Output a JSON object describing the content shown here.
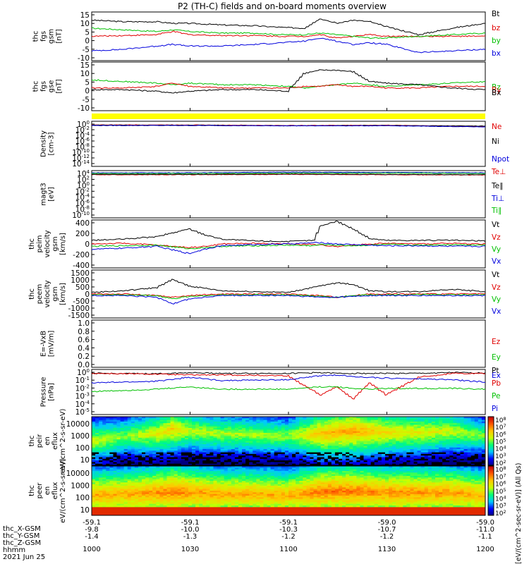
{
  "title": "P2 (TH-C) fields and on-board moments overview",
  "spectrogram_colorbar_label": "[eV/(cm^2-sec-sr-eV)] (All Qs)",
  "ephemeris": {
    "row_labels": [
      "thc_X-GSM",
      "thc_Y-GSM",
      "thc_Z-GSM",
      "hhmm",
      "2021 Jun 25"
    ],
    "ticks": [
      {
        "x": "-59.1",
        "y": "-9.8",
        "z": "-1.4",
        "time": "1000"
      },
      {
        "x": "-59.1",
        "y": "-10.0",
        "z": "-1.3",
        "time": "1030"
      },
      {
        "x": "-59.1",
        "y": "-10.3",
        "z": "-1.2",
        "time": "1100"
      },
      {
        "x": "-59.0",
        "y": "-10.7",
        "z": "-1.2",
        "time": "1130"
      },
      {
        "x": "-59.0",
        "y": "-11.0",
        "z": "-1.1",
        "time": "1200"
      }
    ]
  },
  "chart_data": [
    {
      "type": "line",
      "ylabel": "thc fgs gsm [nT]",
      "yticks": [
        "15",
        "10",
        "5",
        "0",
        "-5",
        "-10"
      ],
      "ylim": [
        -15,
        15
      ],
      "legend": [
        {
          "name": "Bt",
          "color": "#000000"
        },
        {
          "name": "bz",
          "color": "#e00000"
        },
        {
          "name": "by",
          "color": "#00c000"
        },
        {
          "name": "bx",
          "color": "#0000dd"
        }
      ],
      "x": [
        1000,
        1010,
        1020,
        1025,
        1030,
        1040,
        1050,
        1058,
        1105,
        1110,
        1115,
        1120,
        1125,
        1130,
        1140,
        1150,
        1200
      ],
      "series": [
        {
          "name": "Bt",
          "color": "#000000",
          "values": [
            10,
            9,
            9,
            8,
            8,
            7,
            6.5,
            5.5,
            5,
            11,
            8,
            10,
            9,
            6,
            1,
            5,
            8
          ]
        },
        {
          "name": "bz",
          "color": "#e00000",
          "values": [
            0,
            0.5,
            1,
            3,
            1,
            0.5,
            0.5,
            0,
            0,
            1,
            -1,
            0,
            1,
            0,
            0,
            0,
            0
          ]
        },
        {
          "name": "by",
          "color": "#00c000",
          "values": [
            5,
            4,
            3,
            4,
            3,
            2,
            2,
            1,
            1,
            2,
            1,
            0,
            -1,
            -1,
            0,
            1,
            2
          ]
        },
        {
          "name": "bx",
          "color": "#0000dd",
          "values": [
            -9,
            -8,
            -6,
            -5,
            -6,
            -6,
            -5,
            -4,
            -3,
            -1,
            -3,
            -5,
            -4,
            -5,
            -10,
            -9,
            -8
          ]
        }
      ]
    },
    {
      "type": "line",
      "ylabel": "thc fgs gse [nT]",
      "yticks": [
        "15",
        "10",
        "5",
        "0",
        "-5",
        "-10"
      ],
      "ylim": [
        -15,
        15
      ],
      "legend": [
        {
          "name": "Bz",
          "color": "#00c000"
        },
        {
          "name": "By",
          "color": "#e00000"
        },
        {
          "name": "Bx",
          "color": "#000000"
        }
      ],
      "x": [
        1000,
        1010,
        1020,
        1025,
        1030,
        1040,
        1050,
        1100,
        1105,
        1110,
        1115,
        1120,
        1125,
        1130,
        1140,
        1150,
        1200
      ],
      "series": [
        {
          "name": "Bz",
          "color": "#00c000",
          "values": [
            4,
            3,
            2,
            1,
            2,
            1,
            1,
            0,
            -1,
            0,
            1,
            2,
            1,
            0,
            1,
            2,
            3
          ]
        },
        {
          "name": "By",
          "color": "#e00000",
          "values": [
            -1,
            -1,
            0,
            2,
            0,
            -1,
            -1,
            -1,
            0,
            0,
            1,
            0,
            0,
            -1,
            -1,
            0,
            0
          ]
        },
        {
          "name": "Bx",
          "color": "#000000",
          "values": [
            -2,
            -2,
            -3,
            -4,
            -3,
            -2,
            -2,
            -3,
            8,
            10,
            10,
            9,
            3,
            2,
            1,
            -1,
            -2
          ]
        }
      ]
    },
    {
      "type": "line",
      "ylabel": "Density [cm-3]",
      "log": true,
      "yticks": [
        "10^0",
        "10^-2",
        "10^-4",
        "10^-6",
        "10^-8",
        "10^-10",
        "10^-12",
        "10^-14"
      ],
      "ylim_exp": [
        -15,
        1
      ],
      "legend": [
        {
          "name": "Ne",
          "color": "#e00000"
        },
        {
          "name": "Ni",
          "color": "#000000"
        },
        {
          "name": "Npot",
          "color": "#0000dd"
        }
      ],
      "x": [
        1000,
        1030,
        1100,
        1130,
        1200
      ],
      "series": [
        {
          "name": "Ne",
          "color": "#e00000",
          "values": [
            -0.3,
            -0.3,
            -0.5,
            -0.4,
            -0.8
          ]
        },
        {
          "name": "Ni",
          "color": "#000000",
          "values": [
            -0.4,
            -0.4,
            -0.6,
            -0.5,
            -0.7
          ]
        },
        {
          "name": "Npot",
          "color": "#0000dd",
          "values": [
            -0.5,
            -0.5,
            -0.6,
            -0.6,
            -1.0
          ]
        }
      ]
    },
    {
      "type": "line",
      "ylabel": "magt3 [eV]",
      "log": true,
      "yticks": [
        "10^4",
        "10^2",
        "10^0",
        "10^-2",
        "10^-4",
        "10^-6",
        "10^-8",
        "10^-10"
      ],
      "ylim_exp": [
        -11,
        4
      ],
      "legend": [
        {
          "name": "Te⊥",
          "color": "#e00000"
        },
        {
          "name": "Te∥",
          "color": "#000000"
        },
        {
          "name": "Ti⊥",
          "color": "#0000dd"
        },
        {
          "name": "Ti∥",
          "color": "#00c000"
        }
      ],
      "x": [
        1000,
        1030,
        1100,
        1130,
        1200
      ],
      "series": [
        {
          "name": "Te⊥",
          "color": "#e00000",
          "values": [
            2.7,
            2.7,
            2.8,
            2.7,
            2.6
          ]
        },
        {
          "name": "Te∥",
          "color": "#000000",
          "values": [
            2.8,
            2.8,
            2.9,
            2.8,
            2.7
          ]
        },
        {
          "name": "Ti⊥",
          "color": "#0000dd",
          "values": [
            3.3,
            3.3,
            3.5,
            3.4,
            3.3
          ]
        },
        {
          "name": "Ti∥",
          "color": "#00c000",
          "values": [
            3.1,
            3.1,
            3.2,
            3.2,
            3.1
          ]
        }
      ]
    },
    {
      "type": "line",
      "ylabel": "thc peim velocity gsm [km/s]",
      "yticks": [
        "400",
        "200",
        "0",
        "-200",
        "-400"
      ],
      "ylim": [
        -400,
        400
      ],
      "legend": [
        {
          "name": "Vt",
          "color": "#000000"
        },
        {
          "name": "Vz",
          "color": "#e00000"
        },
        {
          "name": "Vy",
          "color": "#00c000"
        },
        {
          "name": "Vx",
          "color": "#0000dd"
        }
      ],
      "x": [
        1000,
        1010,
        1020,
        1030,
        1035,
        1040,
        1050,
        1100,
        1108,
        1110,
        1115,
        1120,
        1125,
        1130,
        1140,
        1150,
        1200
      ],
      "series": [
        {
          "name": "Vt",
          "color": "#000000",
          "values": [
            60,
            80,
            120,
            250,
            150,
            80,
            50,
            40,
            60,
            300,
            380,
            250,
            90,
            60,
            60,
            60,
            50
          ]
        },
        {
          "name": "Vz",
          "color": "#e00000",
          "values": [
            0,
            10,
            -20,
            -60,
            -40,
            0,
            10,
            0,
            -10,
            -20,
            -40,
            -20,
            0,
            10,
            0,
            10,
            0
          ]
        },
        {
          "name": "Vy",
          "color": "#00c000",
          "values": [
            -40,
            -30,
            -20,
            -80,
            -60,
            -40,
            -30,
            -20,
            -30,
            -10,
            -20,
            -30,
            -20,
            -10,
            -20,
            -10,
            -20
          ]
        },
        {
          "name": "Vx",
          "color": "#0000dd",
          "values": [
            -90,
            -70,
            -40,
            -160,
            -80,
            -30,
            -10,
            0,
            20,
            20,
            0,
            -10,
            -20,
            -30,
            -30,
            -40,
            -40
          ]
        }
      ]
    },
    {
      "type": "line",
      "ylabel": "thc peem velocity gsm [km/s]",
      "yticks": [
        "1500",
        "1000",
        "500",
        "0",
        "-500",
        "-1000",
        "-1500"
      ],
      "ylim": [
        -1500,
        1500
      ],
      "legend": [
        {
          "name": "Vt",
          "color": "#000000"
        },
        {
          "name": "Vz",
          "color": "#e00000"
        },
        {
          "name": "Vy",
          "color": "#00c000"
        },
        {
          "name": "Vx",
          "color": "#0000dd"
        }
      ],
      "x": [
        1000,
        1010,
        1020,
        1025,
        1030,
        1040,
        1050,
        1100,
        1110,
        1115,
        1120,
        1125,
        1130,
        1140,
        1150,
        1200
      ],
      "series": [
        {
          "name": "Vt",
          "color": "#000000",
          "values": [
            100,
            200,
            400,
            900,
            500,
            200,
            150,
            100,
            500,
            700,
            600,
            200,
            150,
            150,
            300,
            150
          ]
        },
        {
          "name": "Vz",
          "color": "#e00000",
          "values": [
            0,
            0,
            -100,
            -200,
            -100,
            0,
            0,
            0,
            -100,
            -200,
            -100,
            0,
            0,
            0,
            0,
            0
          ]
        },
        {
          "name": "Vy",
          "color": "#00c000",
          "values": [
            -50,
            -50,
            -100,
            -300,
            -150,
            -50,
            -50,
            -50,
            -150,
            -200,
            -100,
            -50,
            -50,
            -50,
            -50,
            -50
          ]
        },
        {
          "name": "Vx",
          "color": "#0000dd",
          "values": [
            -100,
            -100,
            -200,
            -600,
            -300,
            -100,
            -100,
            -100,
            -200,
            -200,
            -150,
            -100,
            -100,
            -100,
            -100,
            -100
          ]
        }
      ]
    },
    {
      "type": "line",
      "ylabel": "E=-VxB [mV/m]",
      "yticks": [
        "1.0",
        "0.8",
        "0.6",
        "0.4",
        "0.2",
        "0.0"
      ],
      "ylim": [
        0,
        1
      ],
      "legend": [
        {
          "name": "Ez",
          "color": "#e00000"
        },
        {
          "name": "Ey",
          "color": "#00c000"
        },
        {
          "name": "Ex",
          "color": "#0000dd"
        }
      ],
      "x": [],
      "series": []
    },
    {
      "type": "line",
      "ylabel": "Pressure [nPa]",
      "log": true,
      "yticks": [
        "10^0",
        "10^-1",
        "10^-2",
        "10^-3",
        "10^-4",
        "10^-5"
      ],
      "ylim_exp": [
        -5.5,
        0.2
      ],
      "legend": [
        {
          "name": "Pt",
          "color": "#000000"
        },
        {
          "name": "Pb",
          "color": "#e00000"
        },
        {
          "name": "Pe",
          "color": "#00c000"
        },
        {
          "name": "Pi",
          "color": "#0000dd"
        }
      ],
      "x": [
        1000,
        1020,
        1030,
        1040,
        1100,
        1110,
        1115,
        1120,
        1125,
        1130,
        1140,
        1150,
        1200
      ],
      "series": [
        {
          "name": "Pt",
          "color": "#000000",
          "values": [
            -0.3,
            -0.35,
            -0.2,
            -0.3,
            -0.3,
            -0.2,
            -0.3,
            -0.3,
            -0.3,
            -0.3,
            -0.3,
            -0.2,
            -0.25
          ]
        },
        {
          "name": "Pb",
          "color": "#e00000",
          "values": [
            -0.3,
            -0.4,
            -0.5,
            -0.5,
            -0.6,
            -3,
            -2,
            -3.5,
            -1.5,
            -3,
            -0.8,
            -0.3,
            -0.3
          ]
        },
        {
          "name": "Pe",
          "color": "#00c000",
          "values": [
            -2.6,
            -2.3,
            -2.0,
            -2.3,
            -2.3,
            -2.0,
            -2.0,
            -2.2,
            -2.3,
            -2.2,
            -2.2,
            -2.2,
            -2.3
          ]
        },
        {
          "name": "Pi",
          "color": "#0000dd",
          "values": [
            -1.5,
            -1.3,
            -0.8,
            -1.2,
            -1.1,
            -0.6,
            -0.5,
            -0.7,
            -0.8,
            -0.9,
            -1.0,
            -1.1,
            -1.4
          ]
        }
      ]
    },
    {
      "type": "heatmap",
      "ylabel": "thc peir en eflux eV/(cm^2-s-sr-eV)",
      "yticks": [
        "10000",
        "1000",
        "100",
        "10"
      ],
      "colorbar_ticks": [
        "10^8",
        "10^7",
        "10^6",
        "10^5",
        "10^4",
        "10^3",
        "10^2"
      ],
      "x": [
        1000,
        1010,
        1020,
        1025,
        1030,
        1040,
        1050,
        1100,
        1110,
        1120,
        1130,
        1140,
        1150,
        1200
      ],
      "peak_energy_log10": [
        2.6,
        3.0,
        3.2,
        3.6,
        3.4,
        3.2,
        3.1,
        3.0,
        3.2,
        3.4,
        3.3,
        3.3,
        3.4,
        3.0
      ],
      "peak_flux_log10": [
        5.6,
        5.2,
        5.8,
        6.2,
        5.5,
        5.4,
        5.4,
        5.2,
        6.4,
        6.6,
        6.0,
        5.8,
        5.6,
        5.0
      ]
    },
    {
      "type": "heatmap",
      "ylabel": "thc peer en eflux eV/(cm^2-s-sr-eV)",
      "yticks": [
        "10000",
        "1000",
        "100",
        "10"
      ],
      "colorbar_ticks": [
        "10^8",
        "10^7",
        "10^6",
        "10^5",
        "10^4",
        "10^3",
        "10^2"
      ],
      "x": [
        1000,
        1010,
        1020,
        1025,
        1030,
        1040,
        1050,
        1100,
        1110,
        1120,
        1130,
        1140,
        1150,
        1200
      ],
      "peak_energy_log10": [
        2.3,
        2.4,
        2.5,
        2.6,
        2.5,
        2.4,
        2.4,
        2.3,
        2.6,
        2.6,
        2.5,
        2.5,
        2.5,
        2.3
      ],
      "peak_flux_log10": [
        6.6,
        6.6,
        6.8,
        7.0,
        6.8,
        6.6,
        6.6,
        6.5,
        7.0,
        7.0,
        6.8,
        6.8,
        6.7,
        6.5
      ]
    }
  ]
}
